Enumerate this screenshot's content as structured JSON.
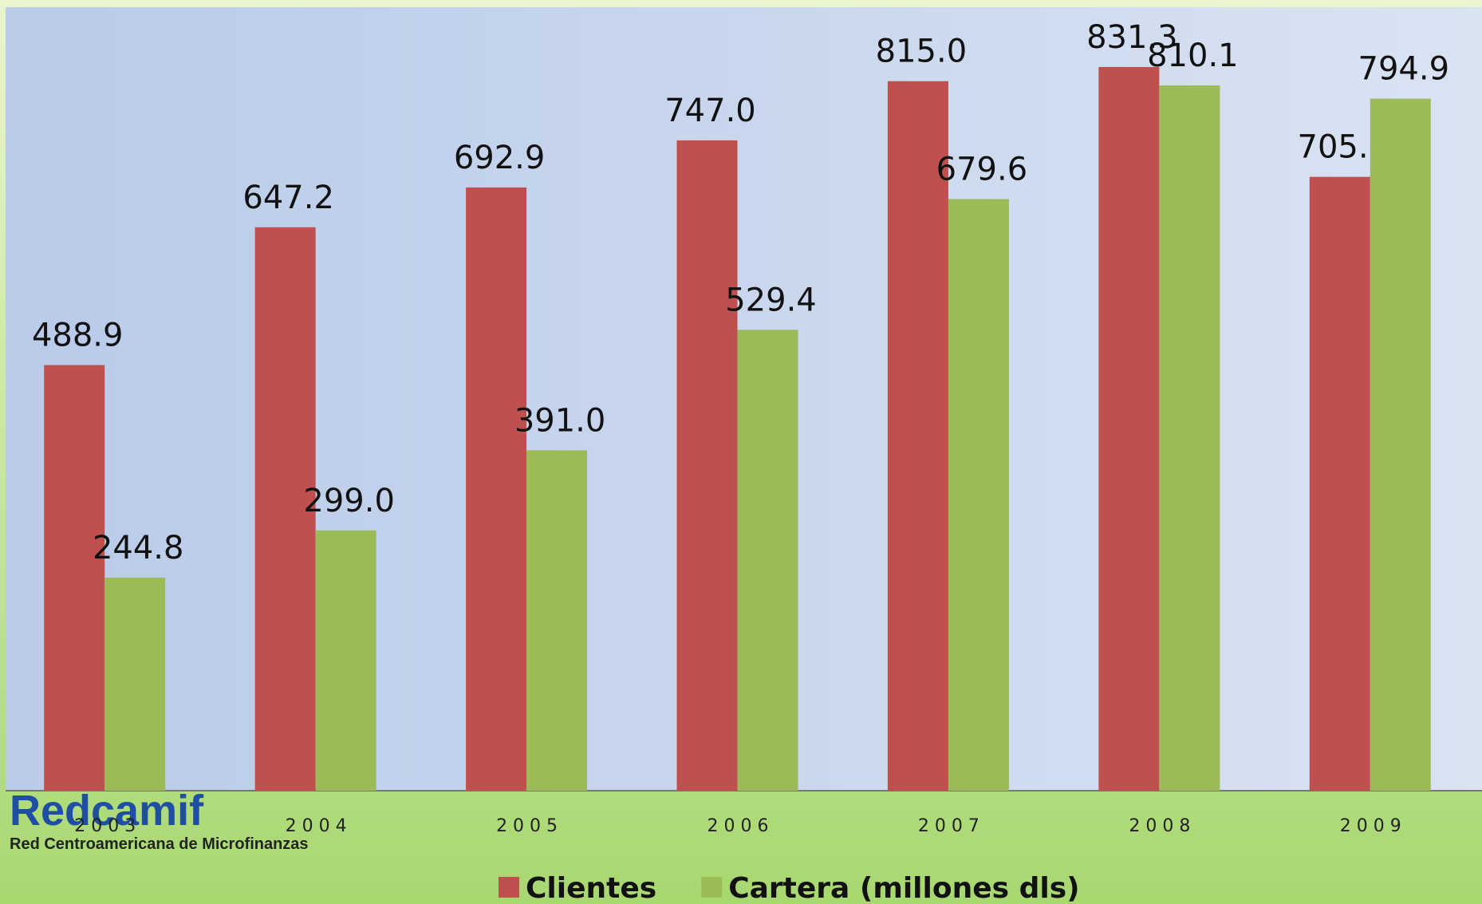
{
  "chart_data": {
    "type": "bar",
    "categories": [
      "2003",
      "2004",
      "2005",
      "2006",
      "2007",
      "2008",
      "2009"
    ],
    "series": [
      {
        "name": "Clientes",
        "color": "#c0504d",
        "values": [
          488.9,
          647.2,
          692.9,
          747.0,
          815.0,
          831.3,
          705.1
        ],
        "value_labels": [
          "488.9",
          "647.2",
          "692.9",
          "747.0",
          "815.0",
          "831.3",
          "705.1"
        ]
      },
      {
        "name": "Cartera (millones dls)",
        "color": "#9bbb59",
        "values": [
          244.8,
          299.0,
          391.0,
          529.4,
          679.6,
          810.1,
          794.9
        ],
        "value_labels": [
          "244.8",
          "299.0",
          "391.0",
          "529.4",
          "679.6",
          "810.1",
          "794.9"
        ]
      }
    ],
    "ylim": [
      0,
      900
    ],
    "legend": "bottom"
  },
  "logo": {
    "title": "Redcamif",
    "subtitle": "Red Centroamericana de Microfinanzas"
  }
}
